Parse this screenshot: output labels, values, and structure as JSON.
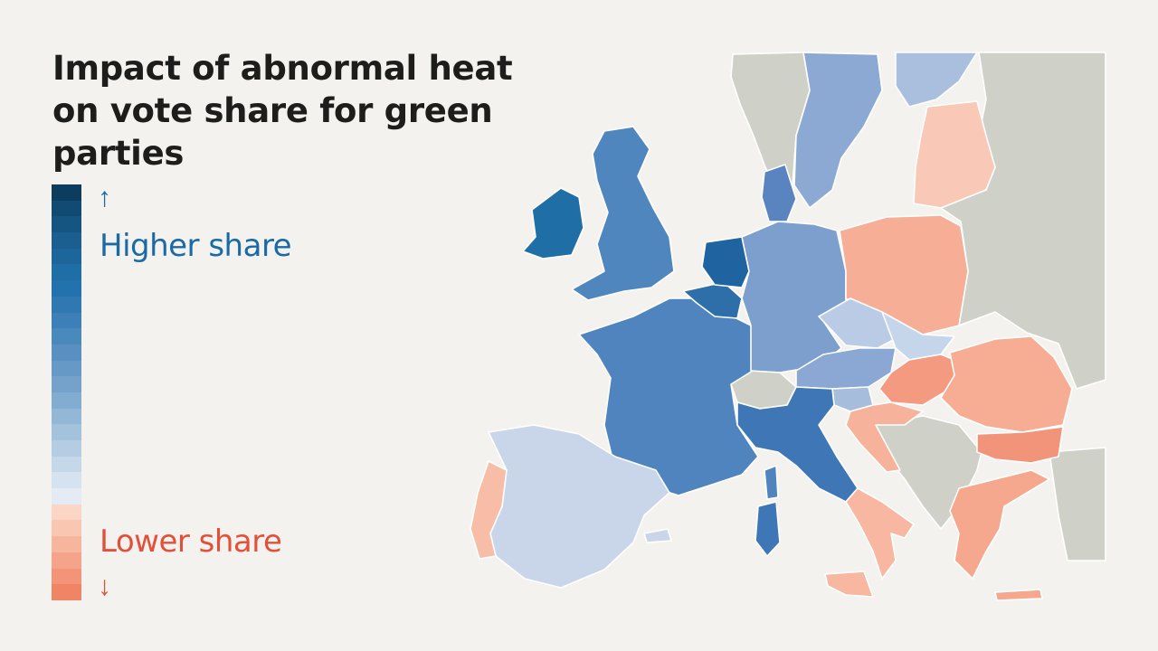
{
  "title": "Impact of abnormal heat on vote share for green parties",
  "legend": {
    "high_label": "Higher share",
    "low_label": "Lower share",
    "up_arrow": "↑",
    "down_arrow": "↓",
    "high_color": "#1a6aa5",
    "low_color": "#e3503a",
    "scale_colors": [
      "#0d3d5e",
      "#114a72",
      "#155582",
      "#1a5f90",
      "#1c669b",
      "#1f6ea6",
      "#2272ad",
      "#2f78b2",
      "#3d80b7",
      "#4a89bc",
      "#5891c1",
      "#6699c6",
      "#74a2cb",
      "#83acd1",
      "#93b7d7",
      "#a3c2dc",
      "#b4cde3",
      "#c5d8ea",
      "#d5e2f0",
      "#e4ebf5",
      "#fbd6c6",
      "#f9c6b2",
      "#f7b59e",
      "#f5a48b",
      "#f39478",
      "#f08566"
    ]
  },
  "map": {
    "background_land_color": "#cfd1c8",
    "border_color": "#ffffff",
    "regions": [
      {
        "name": "Ireland",
        "effect": "higher",
        "color": "#1f6ea6"
      },
      {
        "name": "United Kingdom",
        "effect": "higher",
        "color": "#4f86bd"
      },
      {
        "name": "Netherlands",
        "effect": "higher",
        "color": "#1f63a0"
      },
      {
        "name": "Belgium",
        "effect": "higher",
        "color": "#2e6ea9"
      },
      {
        "name": "France",
        "effect": "higher",
        "color": "#4f84bf"
      },
      {
        "name": "Germany",
        "effect": "higher",
        "color": "#7d9fcd"
      },
      {
        "name": "Denmark",
        "effect": "higher",
        "color": "#5a84bf"
      },
      {
        "name": "Sweden",
        "effect": "higher",
        "color": "#8ba9d2"
      },
      {
        "name": "Finland",
        "effect": "higher",
        "color": "#a9bfdd"
      },
      {
        "name": "Austria",
        "effect": "higher",
        "color": "#8aa8d3"
      },
      {
        "name": "Czechia",
        "effect": "higher",
        "color": "#b9cbe5"
      },
      {
        "name": "Italy (north)",
        "effect": "higher",
        "color": "#3e76b6"
      },
      {
        "name": "Italy (south)",
        "effect": "lower",
        "color": "#f7b7a0"
      },
      {
        "name": "Spain",
        "effect": "higher",
        "color": "#c9d6ea"
      },
      {
        "name": "Portugal",
        "effect": "lower",
        "color": "#f8bda6"
      },
      {
        "name": "Poland",
        "effect": "lower",
        "color": "#f6ae96"
      },
      {
        "name": "Baltics",
        "effect": "lower",
        "color": "#f9c8b6"
      },
      {
        "name": "Hungary",
        "effect": "lower",
        "color": "#f39a80"
      },
      {
        "name": "Romania",
        "effect": "lower",
        "color": "#f7ad94"
      },
      {
        "name": "Bulgaria",
        "effect": "lower",
        "color": "#f29479"
      },
      {
        "name": "Greece",
        "effect": "lower",
        "color": "#f6a88f"
      },
      {
        "name": "Croatia",
        "effect": "lower",
        "color": "#f6b29b"
      },
      {
        "name": "Slovenia",
        "effect": "higher",
        "color": "#a7bddc"
      },
      {
        "name": "Slovakia",
        "effect": "higher",
        "color": "#c5d5ea"
      },
      {
        "name": "Switzerland",
        "effect": "none",
        "color": "#cfd1c8"
      },
      {
        "name": "Norway",
        "effect": "none",
        "color": "#cfd1c8"
      },
      {
        "name": "Eastern Europe (non-EU)",
        "effect": "none",
        "color": "#cfd1c8"
      },
      {
        "name": "Western Balkans",
        "effect": "none",
        "color": "#cfd1c8"
      }
    ]
  }
}
